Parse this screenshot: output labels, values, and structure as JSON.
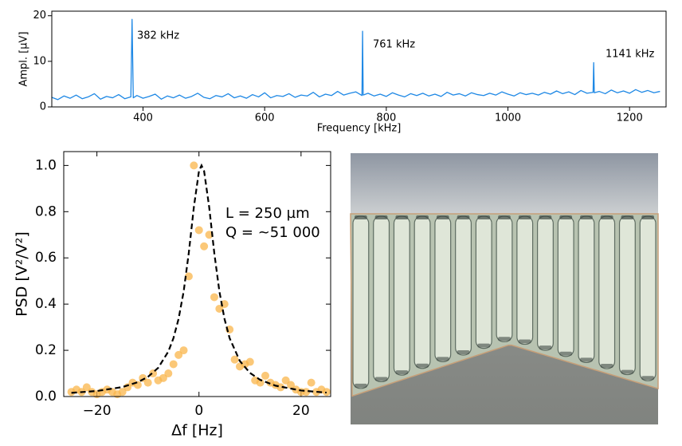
{
  "chart_data": [
    {
      "type": "line",
      "x_label": "Frequency [kHz]",
      "y_label": "Ampl. [µV]",
      "annotations": [
        "382 kHz",
        "761 kHz",
        "1141 kHz"
      ],
      "xlim": [
        250,
        1260
      ],
      "xticks": [
        400,
        600,
        800,
        1000,
        1200
      ],
      "ylim": [
        0,
        21
      ],
      "yticks": [
        0,
        10,
        20
      ],
      "color": "#1e88e5",
      "x": [
        250,
        260,
        270,
        280,
        290,
        300,
        310,
        320,
        330,
        340,
        350,
        360,
        370,
        380,
        382,
        384,
        390,
        400,
        410,
        420,
        430,
        440,
        450,
        460,
        470,
        480,
        490,
        500,
        510,
        520,
        530,
        540,
        550,
        560,
        570,
        580,
        590,
        600,
        610,
        620,
        630,
        640,
        650,
        660,
        670,
        680,
        690,
        700,
        710,
        720,
        730,
        740,
        750,
        760,
        761,
        762,
        770,
        780,
        790,
        800,
        810,
        820,
        830,
        840,
        850,
        860,
        870,
        880,
        890,
        900,
        910,
        920,
        930,
        940,
        950,
        960,
        970,
        980,
        990,
        1000,
        1010,
        1020,
        1030,
        1040,
        1050,
        1060,
        1070,
        1080,
        1090,
        1100,
        1110,
        1120,
        1130,
        1140,
        1141,
        1142,
        1150,
        1160,
        1170,
        1180,
        1190,
        1200,
        1210,
        1220,
        1230,
        1240,
        1250
      ],
      "values": [
        2.1,
        1.6,
        2.4,
        1.9,
        2.6,
        1.8,
        2.2,
        2.9,
        1.7,
        2.3,
        2.0,
        2.7,
        1.8,
        2.2,
        19.2,
        2.0,
        2.5,
        1.9,
        2.3,
        2.8,
        1.7,
        2.4,
        2.0,
        2.6,
        1.9,
        2.3,
        3.0,
        2.1,
        1.8,
        2.5,
        2.2,
        2.9,
        2.0,
        2.4,
        1.9,
        2.7,
        2.2,
        3.1,
        2.0,
        2.5,
        2.3,
        2.9,
        2.1,
        2.6,
        2.4,
        3.2,
        2.2,
        2.8,
        2.5,
        3.4,
        2.6,
        3.0,
        3.3,
        2.5,
        16.6,
        2.6,
        3.0,
        2.4,
        2.8,
        2.3,
        3.1,
        2.6,
        2.2,
        2.9,
        2.5,
        3.0,
        2.4,
        2.8,
        2.3,
        3.2,
        2.6,
        2.9,
        2.4,
        3.1,
        2.7,
        2.5,
        3.0,
        2.6,
        3.3,
        2.8,
        2.4,
        3.1,
        2.7,
        3.0,
        2.6,
        3.2,
        2.8,
        3.5,
        2.9,
        3.3,
        2.7,
        3.6,
        3.0,
        3.2,
        9.7,
        3.1,
        3.4,
        2.9,
        3.7,
        3.1,
        3.5,
        3.0,
        3.8,
        3.2,
        3.6,
        3.1,
        3.4
      ]
    },
    {
      "type": "scatter",
      "x_label": "Δf [Hz]",
      "y_label": "PSD [V²/V²]",
      "annotations": [
        "L = 250 µm",
        "Q = ~51 000"
      ],
      "xlim": [
        -26.5,
        25.8
      ],
      "xticks": [
        {
          "value": -20,
          "label": "−20"
        },
        0,
        20
      ],
      "ylim": [
        0,
        1.06
      ],
      "yticks": [
        {
          "value": 0,
          "label": "0.0"
        },
        0.2,
        0.4,
        0.6,
        0.8,
        {
          "value": 1,
          "label": "1.0"
        }
      ],
      "series": [
        {
          "type": "scatter",
          "color": "#f9b64b",
          "x": [
            -25,
            -24,
            -23,
            -22,
            -21,
            -20,
            -19,
            -18,
            -17,
            -16,
            -15,
            -14,
            -13,
            -12,
            -11,
            -10,
            -9,
            -8,
            -7,
            -6,
            -5,
            -4,
            -3,
            -2,
            -1,
            0,
            1,
            2,
            3,
            4,
            5,
            6,
            7,
            8,
            9,
            10,
            11,
            12,
            13,
            14,
            15,
            16,
            17,
            18,
            19,
            20,
            21,
            22,
            23,
            24,
            25
          ],
          "values": [
            0.02,
            0.03,
            0.02,
            0.04,
            0.02,
            0.01,
            0.02,
            0.03,
            0.02,
            0.01,
            0.02,
            0.04,
            0.06,
            0.05,
            0.08,
            0.06,
            0.1,
            0.07,
            0.08,
            0.1,
            0.14,
            0.18,
            0.2,
            0.52,
            1.0,
            0.72,
            0.65,
            0.7,
            0.43,
            0.38,
            0.4,
            0.29,
            0.16,
            0.13,
            0.14,
            0.15,
            0.07,
            0.06,
            0.09,
            0.06,
            0.05,
            0.04,
            0.07,
            0.05,
            0.03,
            0.02,
            0.02,
            0.06,
            0.02,
            0.03,
            0.02
          ]
        },
        {
          "type": "line",
          "color": "#000000",
          "dash": true,
          "x": [
            -25,
            -20,
            -15,
            -12,
            -10,
            -8,
            -6,
            -5,
            -4,
            -3,
            -2,
            -1,
            0,
            0.5,
            1,
            2,
            3,
            4,
            5,
            6,
            8,
            10,
            12,
            15,
            20,
            25
          ],
          "values": [
            0.016,
            0.024,
            0.041,
            0.062,
            0.085,
            0.124,
            0.195,
            0.253,
            0.336,
            0.455,
            0.621,
            0.82,
            0.976,
            1.0,
            0.976,
            0.82,
            0.621,
            0.455,
            0.336,
            0.253,
            0.154,
            0.102,
            0.072,
            0.047,
            0.026,
            0.017
          ]
        }
      ]
    }
  ]
}
